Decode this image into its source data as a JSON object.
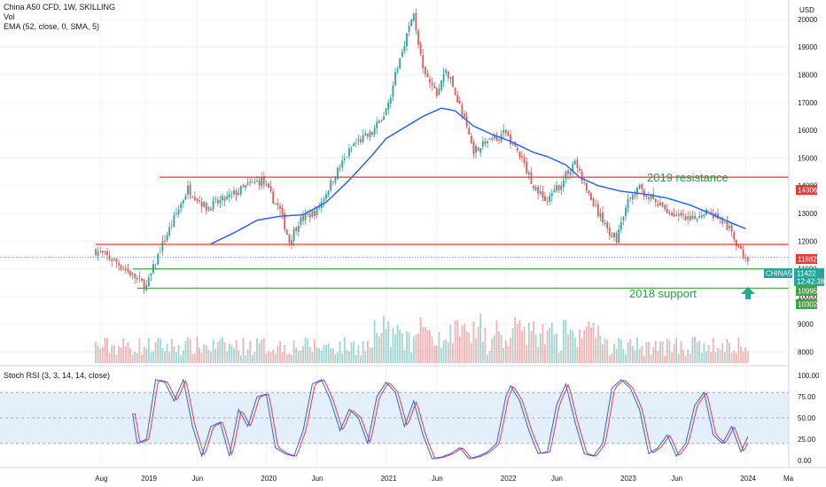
{
  "header": {
    "title": "China A50 CFD, 1W, SKILLING",
    "vol_label": "Vol",
    "ema_label": "EMA (52, close, 0, SMA, 5)",
    "currency": "USD"
  },
  "indicator": {
    "label": "Stoch RSI (3, 3, 14, 14, close)"
  },
  "price_tags": {
    "resistance": "14306",
    "level_11882": "11882",
    "symbol": "CHINA50",
    "price": "11422",
    "countdown": "12:42:38",
    "support": "10995",
    "low": "10302"
  },
  "annotations": {
    "resistance": "2019 resistance",
    "support": "2018 support"
  },
  "colors": {
    "up": "#26a69a",
    "down": "#ef5350",
    "ema": "#2962ff",
    "resistance_line": "#e53935",
    "support_line": "#43a047",
    "stoch_k": "#2962ff",
    "stoch_d": "#f23645",
    "stoch_band": "#e3f0fb"
  },
  "chart_data": [
    {
      "type": "candlestick",
      "title": "China A50 CFD, 1W, SKILLING",
      "ylabel": "USD",
      "ylim": [
        7600,
        20700
      ],
      "y_ticks": [
        8000,
        9000,
        10000,
        11000,
        12000,
        13000,
        14000,
        15000,
        16000,
        17000,
        18000,
        19000,
        20000
      ],
      "x_ticks": [
        "Aug",
        "2019",
        "Jun",
        "2020",
        "Jun",
        "2021",
        "Jun",
        "2022",
        "Jun",
        "2023",
        "Jun",
        "2024"
      ],
      "x_tick_positions": [
        2,
        22,
        44,
        74,
        96,
        126,
        148,
        178,
        200,
        230,
        252,
        282
      ],
      "extra_x_tick": "Ma",
      "weeks": 284,
      "price_keypoints": [
        [
          0,
          11650
        ],
        [
          8,
          11300
        ],
        [
          14,
          10900
        ],
        [
          22,
          10350
        ],
        [
          28,
          11700
        ],
        [
          34,
          12800
        ],
        [
          40,
          13900
        ],
        [
          48,
          13200
        ],
        [
          56,
          13500
        ],
        [
          66,
          14000
        ],
        [
          72,
          14200
        ],
        [
          80,
          13100
        ],
        [
          84,
          12000
        ],
        [
          88,
          12700
        ],
        [
          96,
          13100
        ],
        [
          104,
          14400
        ],
        [
          112,
          15500
        ],
        [
          120,
          15900
        ],
        [
          126,
          16700
        ],
        [
          134,
          19200
        ],
        [
          138,
          20200
        ],
        [
          142,
          18100
        ],
        [
          148,
          17300
        ],
        [
          152,
          18200
        ],
        [
          158,
          16900
        ],
        [
          164,
          15300
        ],
        [
          170,
          15600
        ],
        [
          178,
          15900
        ],
        [
          184,
          15100
        ],
        [
          190,
          14000
        ],
        [
          196,
          13400
        ],
        [
          202,
          14100
        ],
        [
          208,
          14900
        ],
        [
          212,
          14000
        ],
        [
          218,
          13000
        ],
        [
          222,
          12400
        ],
        [
          226,
          12100
        ],
        [
          230,
          13300
        ],
        [
          236,
          13900
        ],
        [
          244,
          13300
        ],
        [
          250,
          13000
        ],
        [
          258,
          12700
        ],
        [
          264,
          13100
        ],
        [
          270,
          12900
        ],
        [
          276,
          12300
        ],
        [
          280,
          11600
        ],
        [
          283,
          11422
        ]
      ],
      "ema_keypoints": [
        [
          50,
          11900
        ],
        [
          60,
          12300
        ],
        [
          70,
          12750
        ],
        [
          80,
          12900
        ],
        [
          90,
          12950
        ],
        [
          100,
          13400
        ],
        [
          110,
          14200
        ],
        [
          120,
          15100
        ],
        [
          126,
          15700
        ],
        [
          134,
          16100
        ],
        [
          142,
          16500
        ],
        [
          150,
          16800
        ],
        [
          156,
          16700
        ],
        [
          164,
          16150
        ],
        [
          172,
          15850
        ],
        [
          180,
          15600
        ],
        [
          190,
          15200
        ],
        [
          196,
          15050
        ],
        [
          204,
          14750
        ],
        [
          210,
          14300
        ],
        [
          218,
          14000
        ],
        [
          228,
          13800
        ],
        [
          238,
          13700
        ],
        [
          248,
          13550
        ],
        [
          258,
          13300
        ],
        [
          268,
          12950
        ],
        [
          276,
          12650
        ],
        [
          282,
          12450
        ]
      ],
      "horizontal_levels": [
        {
          "value": 14306,
          "label": "14306",
          "color": "red"
        },
        {
          "value": 11882,
          "label": "11882",
          "color": "red"
        },
        {
          "value": 10995,
          "label": "10995",
          "color": "green"
        },
        {
          "value": 10302,
          "label": "10302",
          "color": "green"
        }
      ],
      "last_price": 11422,
      "annotations": [
        "2019 resistance",
        "2018 support"
      ]
    },
    {
      "type": "line",
      "title": "Stoch RSI (3, 3, 14, 14, close)",
      "ylim": [
        0,
        100
      ],
      "y_ticks": [
        0,
        25,
        50,
        75,
        100
      ],
      "y_tick_labels": [
        "0.00",
        "25.00",
        "50.00",
        "75.00",
        "100.00"
      ],
      "bands": [
        20,
        80
      ],
      "series": [
        {
          "values_keypoints": [
            [
              16,
              55
            ],
            [
              18,
              20
            ],
            [
              22,
              25
            ],
            [
              26,
              95
            ],
            [
              30,
              92
            ],
            [
              34,
              70
            ],
            [
              38,
              95
            ],
            [
              42,
              40
            ],
            [
              46,
              5
            ],
            [
              50,
              40
            ],
            [
              54,
              45
            ],
            [
              58,
              5
            ],
            [
              62,
              60
            ],
            [
              66,
              40
            ],
            [
              70,
              75
            ],
            [
              74,
              78
            ],
            [
              78,
              15
            ],
            [
              82,
              8
            ],
            [
              86,
              5
            ],
            [
              90,
              35
            ],
            [
              94,
              90
            ],
            [
              98,
              95
            ],
            [
              102,
              70
            ],
            [
              106,
              35
            ],
            [
              110,
              60
            ],
            [
              114,
              50
            ],
            [
              118,
              20
            ],
            [
              122,
              75
            ],
            [
              126,
              92
            ],
            [
              130,
              80
            ],
            [
              134,
              40
            ],
            [
              138,
              70
            ],
            [
              142,
              30
            ],
            [
              146,
              2
            ],
            [
              150,
              4
            ],
            [
              154,
              8
            ],
            [
              158,
              15
            ],
            [
              162,
              2
            ],
            [
              166,
              5
            ],
            [
              170,
              10
            ],
            [
              174,
              20
            ],
            [
              178,
              75
            ],
            [
              180,
              88
            ],
            [
              184,
              70
            ],
            [
              188,
              35
            ],
            [
              192,
              8
            ],
            [
              196,
              10
            ],
            [
              200,
              65
            ],
            [
              204,
              90
            ],
            [
              208,
              45
            ],
            [
              212,
              8
            ],
            [
              216,
              5
            ],
            [
              220,
              20
            ],
            [
              224,
              85
            ],
            [
              228,
              95
            ],
            [
              232,
              85
            ],
            [
              236,
              60
            ],
            [
              240,
              8
            ],
            [
              244,
              15
            ],
            [
              248,
              30
            ],
            [
              252,
              5
            ],
            [
              256,
              20
            ],
            [
              260,
              65
            ],
            [
              264,
              80
            ],
            [
              268,
              30
            ],
            [
              272,
              20
            ],
            [
              276,
              40
            ],
            [
              280,
              10
            ],
            [
              283,
              28
            ]
          ]
        }
      ]
    }
  ]
}
